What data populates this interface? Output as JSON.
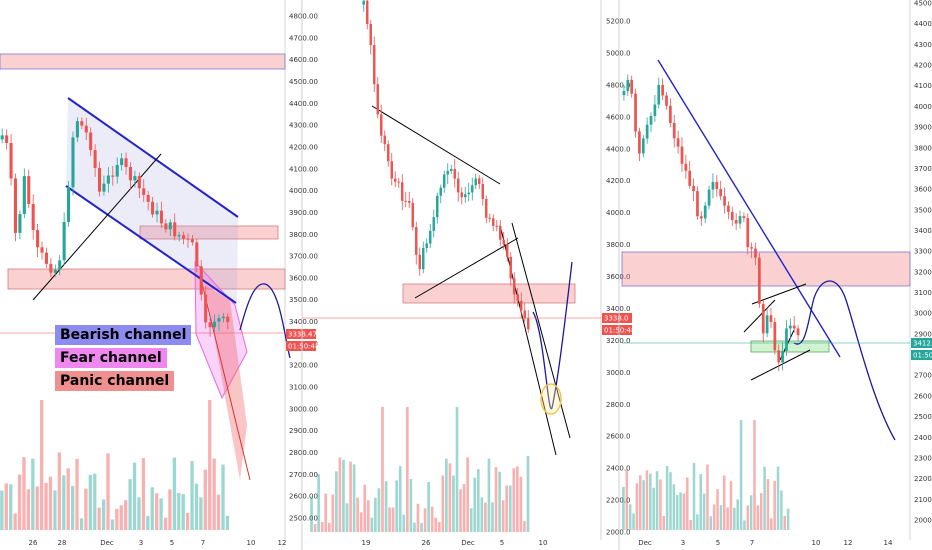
{
  "chart_data": [
    {
      "type": "candlestick",
      "y_ticks": [
        "4800.00",
        "4700.00",
        "4600.00",
        "4500.00",
        "4400.00",
        "4300.00",
        "4200.00",
        "4100.00",
        "4000.00",
        "3900.00",
        "3800.00",
        "3700.00",
        "3600.00",
        "3500.00",
        "3400.00",
        "3300.00",
        "3200.00",
        "3100.00",
        "3000.00",
        "2900.00",
        "2800.00",
        "2700.00",
        "2600.00",
        "2500.00"
      ],
      "x_ticks": [
        "26",
        "28",
        "Dec",
        "3",
        "5",
        "7",
        "10",
        "12"
      ],
      "price_tag": "3338.47",
      "timer_tag": "01:50:48",
      "legend": [
        {
          "label": "Bearish channel",
          "color": "#8e8bf0"
        },
        {
          "label": "Fear channel",
          "color": "#ee88ee"
        },
        {
          "label": "Panic channel",
          "color": "#f08f8f"
        }
      ]
    },
    {
      "type": "candlestick",
      "y_ticks": [
        "5200.0",
        "5000.0",
        "4800.0",
        "4600.0",
        "4400.0",
        "4200.0",
        "4000.0",
        "3800.0",
        "3600.0",
        "3400.0",
        "3200.0",
        "3000.0",
        "2800.0",
        "2600.0",
        "2400.0",
        "2200.0",
        "2000.0"
      ],
      "x_ticks": [
        "19",
        "26",
        "Dec",
        "5",
        "10"
      ],
      "price_tag": "3338.0",
      "timer_tag": "01:50:48"
    },
    {
      "type": "candlestick",
      "y_ticks": [
        "4500.0",
        "4400.0",
        "4300.0",
        "4200.0",
        "4100.0",
        "4000.0",
        "3900.0",
        "3800.0",
        "3700.0",
        "3600.0",
        "3500.0",
        "3400.0",
        "3300.0",
        "3200.0",
        "3100.0",
        "3000.0",
        "2900.0",
        "2800.0",
        "2700.0",
        "2600.0",
        "2500.0",
        "2400.0",
        "2300.0",
        "2200.0",
        "2100.0",
        "2000.0"
      ],
      "x_ticks": [
        "Dec",
        "3",
        "5",
        "7",
        "10",
        "12",
        "14"
      ],
      "price_tag": "3412.0",
      "timer_tag": "01:50:48"
    }
  ]
}
